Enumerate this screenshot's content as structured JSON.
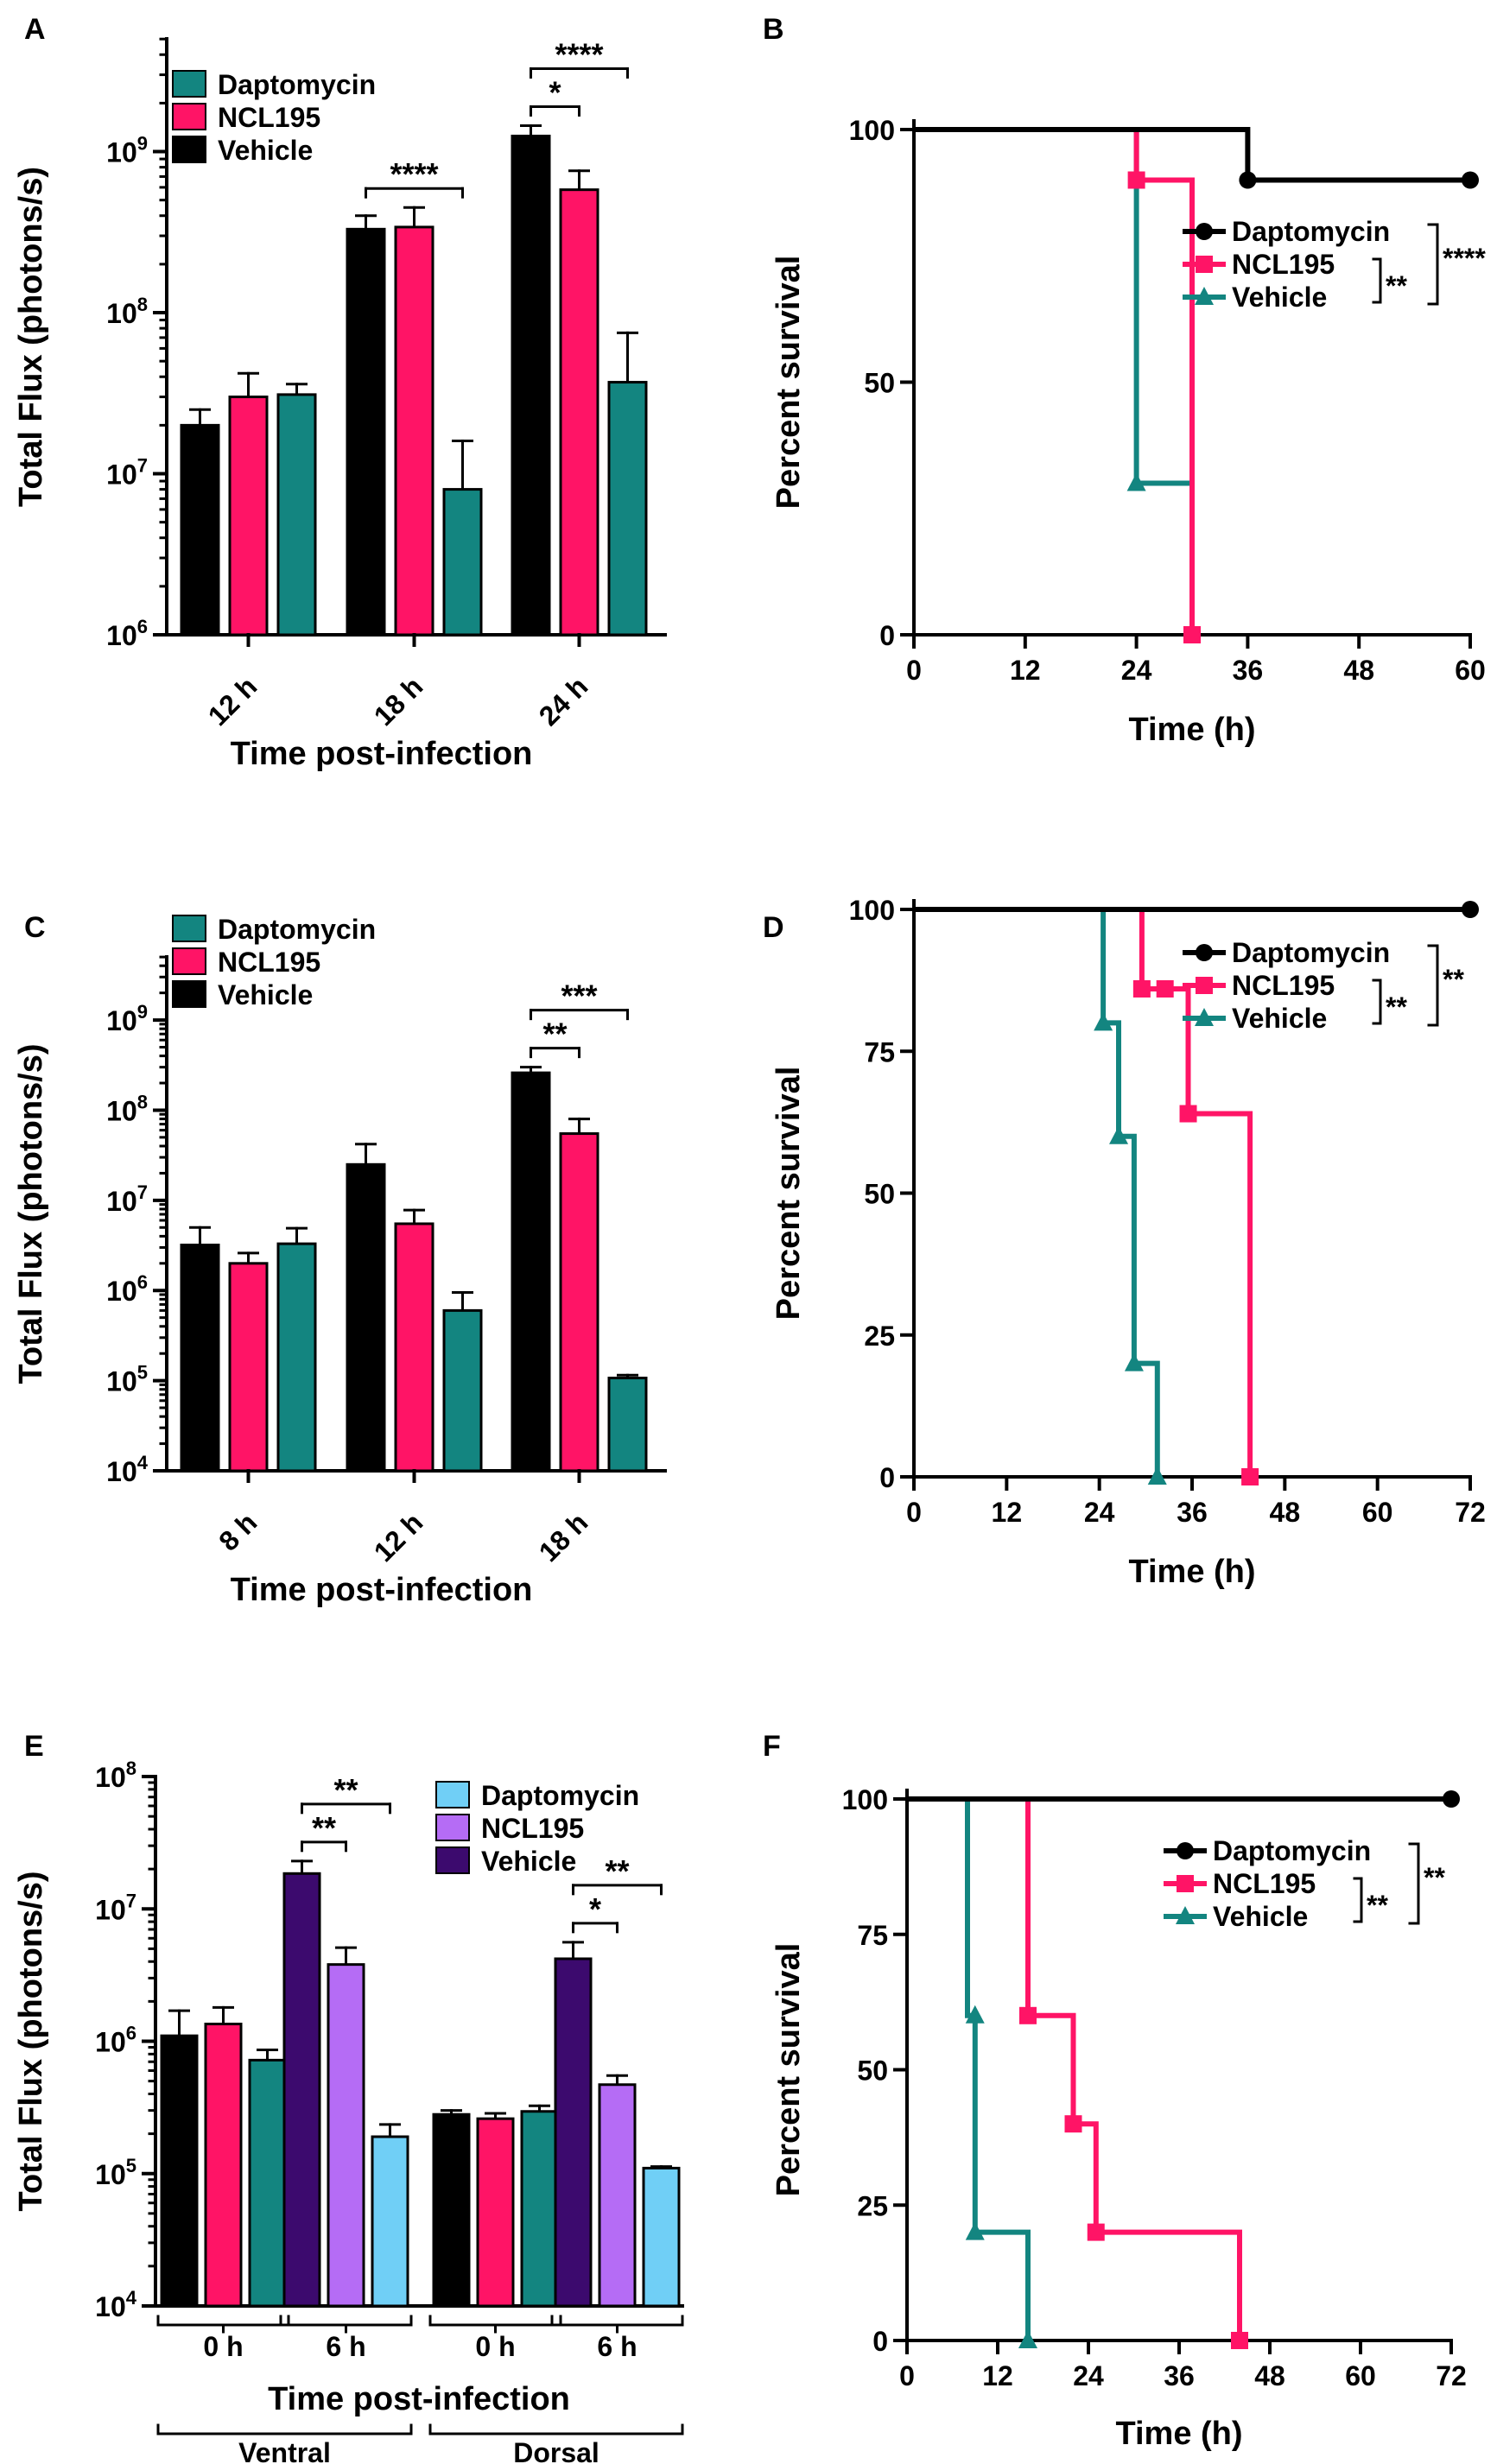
{
  "colors": {
    "vehicle": "#000000",
    "ncl195": "#ff1466",
    "daptomycin": "#138580",
    "e_vehicle": "#3c0a6e",
    "e_ncl195": "#b56cf5",
    "e_daptomycin": "#70cff6"
  },
  "chart_data": [
    {
      "panel": "A",
      "type": "bar",
      "title": "",
      "xlabel": "Time post-infection",
      "ylabel": "Total Flux (photons/s)",
      "yscale": "log",
      "ylim_exp": [
        6,
        9.7
      ],
      "ytick_exponents": [
        6,
        7,
        8,
        9
      ],
      "categories": [
        "12 h",
        "18 h",
        "24 h"
      ],
      "legend": [
        "Daptomycin",
        "NCL195",
        "Vehicle"
      ],
      "series": [
        {
          "name": "Vehicle",
          "color_key": "vehicle",
          "values": [
            20000000.0,
            330000000.0,
            1250000000.0
          ],
          "errors": [
            25000000.0,
            400000000.0,
            1450000000.0
          ]
        },
        {
          "name": "NCL195",
          "color_key": "ncl195",
          "values": [
            30000000.0,
            340000000.0,
            580000000.0
          ],
          "errors": [
            42000000.0,
            450000000.0,
            760000000.0
          ]
        },
        {
          "name": "Daptomycin",
          "color_key": "daptomycin",
          "values": [
            31000000.0,
            8000000.0,
            37000000.0
          ],
          "errors": [
            36000000.0,
            16000000.0,
            75000000.0
          ]
        }
      ],
      "significance": [
        {
          "label": "****",
          "category": "18 h",
          "from": "Vehicle",
          "to": "Daptomycin"
        },
        {
          "label": "*",
          "category": "24 h",
          "from": "Vehicle",
          "to": "NCL195"
        },
        {
          "label": "****",
          "category": "24 h",
          "from": "Vehicle",
          "to": "Daptomycin"
        }
      ]
    },
    {
      "panel": "B",
      "type": "line",
      "title": "",
      "xlabel": "Time (h)",
      "ylabel": "Percent survival",
      "xlim": [
        0,
        60
      ],
      "ylim": [
        0,
        100
      ],
      "xticks": [
        0,
        12,
        24,
        36,
        48,
        60
      ],
      "yticks": [
        0,
        50,
        100
      ],
      "series": [
        {
          "name": "Daptomycin",
          "color_key": "vehicle",
          "marker": "circle",
          "x": [
            0,
            36,
            36,
            60
          ],
          "y": [
            100,
            100,
            90,
            90
          ],
          "markers": [
            [
              36,
              90
            ],
            [
              60,
              90
            ]
          ]
        },
        {
          "name": "NCL195",
          "color_key": "ncl195",
          "marker": "square",
          "x": [
            24,
            24,
            30,
            30
          ],
          "y": [
            100,
            90,
            90,
            0
          ],
          "markers": [
            [
              24,
              90
            ],
            [
              30,
              0
            ]
          ]
        },
        {
          "name": "Vehicle",
          "color_key": "daptomycin",
          "marker": "triangle",
          "x": [
            24,
            24,
            30
          ],
          "y": [
            100,
            30,
            30
          ],
          "markers": [
            [
              24,
              30
            ]
          ]
        }
      ],
      "significance": [
        {
          "label": "**",
          "between": [
            "NCL195",
            "Vehicle"
          ]
        },
        {
          "label": "****",
          "between": [
            "Daptomycin",
            "Vehicle"
          ]
        }
      ]
    },
    {
      "panel": "C",
      "type": "bar",
      "title": "",
      "xlabel": "Time post-infection",
      "ylabel": "Total Flux (photons/s)",
      "yscale": "log",
      "ylim_exp": [
        4,
        9.7
      ],
      "ytick_exponents": [
        4,
        5,
        6,
        7,
        8,
        9
      ],
      "categories": [
        "8 h",
        "12 h",
        "18 h"
      ],
      "legend": [
        "Daptomycin",
        "NCL195",
        "Vehicle"
      ],
      "series": [
        {
          "name": "Vehicle",
          "color_key": "vehicle",
          "values": [
            3200000.0,
            25000000.0,
            260000000.0
          ],
          "errors": [
            5000000.0,
            42000000.0,
            300000000.0
          ]
        },
        {
          "name": "NCL195",
          "color_key": "ncl195",
          "values": [
            2000000.0,
            5500000.0,
            55000000.0
          ],
          "errors": [
            2600000.0,
            7800000.0,
            80000000.0
          ]
        },
        {
          "name": "Daptomycin",
          "color_key": "daptomycin",
          "values": [
            3300000.0,
            600000.0,
            107000.0
          ],
          "errors": [
            4900000.0,
            950000.0,
            115000.0
          ]
        }
      ],
      "significance": [
        {
          "label": "**",
          "category": "18 h",
          "from": "Vehicle",
          "to": "NCL195"
        },
        {
          "label": "***",
          "category": "18 h",
          "from": "Vehicle",
          "to": "Daptomycin"
        }
      ]
    },
    {
      "panel": "D",
      "type": "line",
      "title": "",
      "xlabel": "Time (h)",
      "ylabel": "Percent survival",
      "xlim": [
        0,
        72
      ],
      "ylim": [
        0,
        100
      ],
      "xticks": [
        0,
        12,
        24,
        36,
        48,
        60,
        72
      ],
      "yticks": [
        0,
        25,
        50,
        75,
        100
      ],
      "series": [
        {
          "name": "Daptomycin",
          "color_key": "vehicle",
          "marker": "circle",
          "x": [
            0,
            72
          ],
          "y": [
            100,
            100
          ],
          "markers": [
            [
              72,
              100
            ]
          ]
        },
        {
          "name": "NCL195",
          "color_key": "ncl195",
          "marker": "square",
          "x": [
            29.5,
            29.5,
            35.5,
            35.5,
            43.5,
            43.5
          ],
          "y": [
            100,
            86,
            86,
            64,
            64,
            0
          ],
          "markers": [
            [
              29.5,
              86
            ],
            [
              32.5,
              86
            ],
            [
              35.5,
              64
            ],
            [
              43.5,
              0
            ]
          ]
        },
        {
          "name": "Vehicle",
          "color_key": "daptomycin",
          "marker": "triangle",
          "x": [
            24.5,
            24.5,
            26.5,
            26.5,
            28.5,
            28.5,
            31.5,
            31.5
          ],
          "y": [
            100,
            80,
            80,
            60,
            60,
            20,
            20,
            0
          ],
          "markers": [
            [
              24.5,
              80
            ],
            [
              26.5,
              60
            ],
            [
              28.5,
              20
            ],
            [
              31.5,
              0
            ]
          ]
        }
      ],
      "significance": [
        {
          "label": "**",
          "between": [
            "NCL195",
            "Vehicle"
          ]
        },
        {
          "label": "**",
          "between": [
            "Daptomycin",
            "Vehicle"
          ]
        }
      ]
    },
    {
      "panel": "E",
      "type": "bar",
      "title": "",
      "xlabel": "Time post-infection",
      "ylabel": "Total Flux (photons/s)",
      "yscale": "log",
      "ylim_exp": [
        4,
        8
      ],
      "ytick_exponents": [
        4,
        5,
        6,
        7,
        8
      ],
      "categories": [
        "0 h",
        "6 h",
        "0 h",
        "6 h"
      ],
      "site_groups": [
        {
          "label": "Ventral",
          "categories": [
            0,
            1
          ]
        },
        {
          "label": "Dorsal",
          "categories": [
            2,
            3
          ]
        }
      ],
      "legend": [
        "Daptomycin",
        "NCL195",
        "Vehicle"
      ],
      "series": [
        {
          "name": "Vehicle",
          "color_keys": [
            "vehicle",
            "e_vehicle",
            "vehicle",
            "e_vehicle"
          ],
          "values": [
            1100000.0,
            18500000.0,
            280000.0,
            4200000.0
          ],
          "errors": [
            1700000.0,
            23000000.0,
            300000.0,
            5600000.0
          ]
        },
        {
          "name": "NCL195",
          "color_keys": [
            "ncl195",
            "e_ncl195",
            "ncl195",
            "e_ncl195"
          ],
          "values": [
            1350000.0,
            3800000.0,
            260000.0,
            470000.0
          ],
          "errors": [
            1800000.0,
            5100000.0,
            285000.0,
            550000.0
          ]
        },
        {
          "name": "Daptomycin",
          "color_keys": [
            "daptomycin",
            "e_daptomycin",
            "daptomycin",
            "e_daptomycin"
          ],
          "values": [
            720000.0,
            190000.0,
            295000.0,
            110000.0
          ],
          "errors": [
            860000.0,
            235000.0,
            325000.0,
            113000.0
          ]
        }
      ],
      "significance": [
        {
          "label": "**",
          "category_index": 1,
          "from": "Vehicle",
          "to": "NCL195"
        },
        {
          "label": "**",
          "category_index": 1,
          "from": "Vehicle",
          "to": "Daptomycin"
        },
        {
          "label": "*",
          "category_index": 3,
          "from": "Vehicle",
          "to": "NCL195"
        },
        {
          "label": "**",
          "category_index": 3,
          "from": "Vehicle",
          "to": "Daptomycin"
        }
      ]
    },
    {
      "panel": "F",
      "type": "line",
      "title": "",
      "xlabel": "Time (h)",
      "ylabel": "Percent survival",
      "xlim": [
        0,
        72
      ],
      "ylim": [
        0,
        100
      ],
      "xticks": [
        0,
        12,
        24,
        36,
        48,
        60,
        72
      ],
      "yticks": [
        0,
        25,
        50,
        75,
        100
      ],
      "series": [
        {
          "name": "Daptomycin",
          "color_key": "vehicle",
          "marker": "circle",
          "x": [
            0,
            72
          ],
          "y": [
            100,
            100
          ],
          "markers": [
            [
              72,
              100
            ]
          ]
        },
        {
          "name": "NCL195",
          "color_key": "ncl195",
          "marker": "square",
          "x": [
            16,
            16,
            22,
            22,
            25,
            25,
            44,
            44
          ],
          "y": [
            100,
            60,
            60,
            40,
            40,
            20,
            20,
            0
          ],
          "markers": [
            [
              16,
              60
            ],
            [
              22,
              40
            ],
            [
              25,
              20
            ],
            [
              44,
              0
            ]
          ]
        },
        {
          "name": "Vehicle",
          "color_key": "daptomycin",
          "marker": "triangle",
          "x": [
            8,
            8,
            9,
            9,
            16,
            16
          ],
          "y": [
            100,
            60,
            60,
            20,
            20,
            0
          ],
          "markers": [
            [
              9,
              60
            ],
            [
              9,
              20
            ],
            [
              16,
              0
            ]
          ]
        }
      ],
      "significance": [
        {
          "label": "**",
          "between": [
            "NCL195",
            "Vehicle"
          ]
        },
        {
          "label": "**",
          "between": [
            "Daptomycin",
            "Vehicle"
          ]
        }
      ]
    }
  ]
}
